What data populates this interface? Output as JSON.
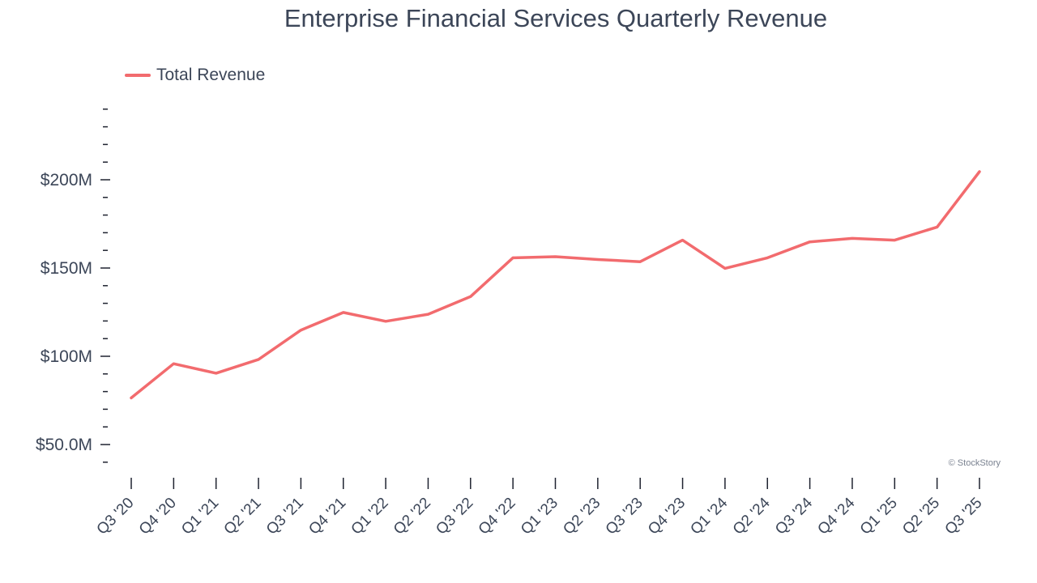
{
  "chart_data": {
    "type": "line",
    "title": "Enterprise Financial Services Quarterly Revenue",
    "xlabel": "",
    "ylabel": "",
    "categories": [
      "Q3 '20",
      "Q4 '20",
      "Q1 '21",
      "Q2 '21",
      "Q3 '21",
      "Q4 '21",
      "Q1 '22",
      "Q2 '22",
      "Q3 '22",
      "Q4 '22",
      "Q1 '23",
      "Q2 '23",
      "Q3 '23",
      "Q4 '23",
      "Q1 '24",
      "Q2 '24",
      "Q3 '24",
      "Q4 '24",
      "Q1 '25",
      "Q2 '25",
      "Q3 '25"
    ],
    "series": [
      {
        "name": "Total Revenue",
        "color": "#f26b6e",
        "values": [
          76.4,
          95.8,
          90.4,
          98.2,
          114.8,
          124.8,
          119.8,
          123.8,
          133.8,
          155.8,
          156.4,
          154.8,
          153.6,
          165.8,
          149.8,
          155.8,
          164.8,
          166.8,
          165.8,
          173.2,
          204.6
        ]
      }
    ],
    "ylim": [
      40,
      240
    ],
    "yticks_major": [
      {
        "value": 50,
        "label": "$50.0M"
      },
      {
        "value": 100,
        "label": "$100M"
      },
      {
        "value": 150,
        "label": "$150M"
      },
      {
        "value": 200,
        "label": "$200M"
      }
    ],
    "ytick_minor_step": 10,
    "legend_position": "top-left",
    "grid": false
  },
  "watermark": "© StockStory"
}
